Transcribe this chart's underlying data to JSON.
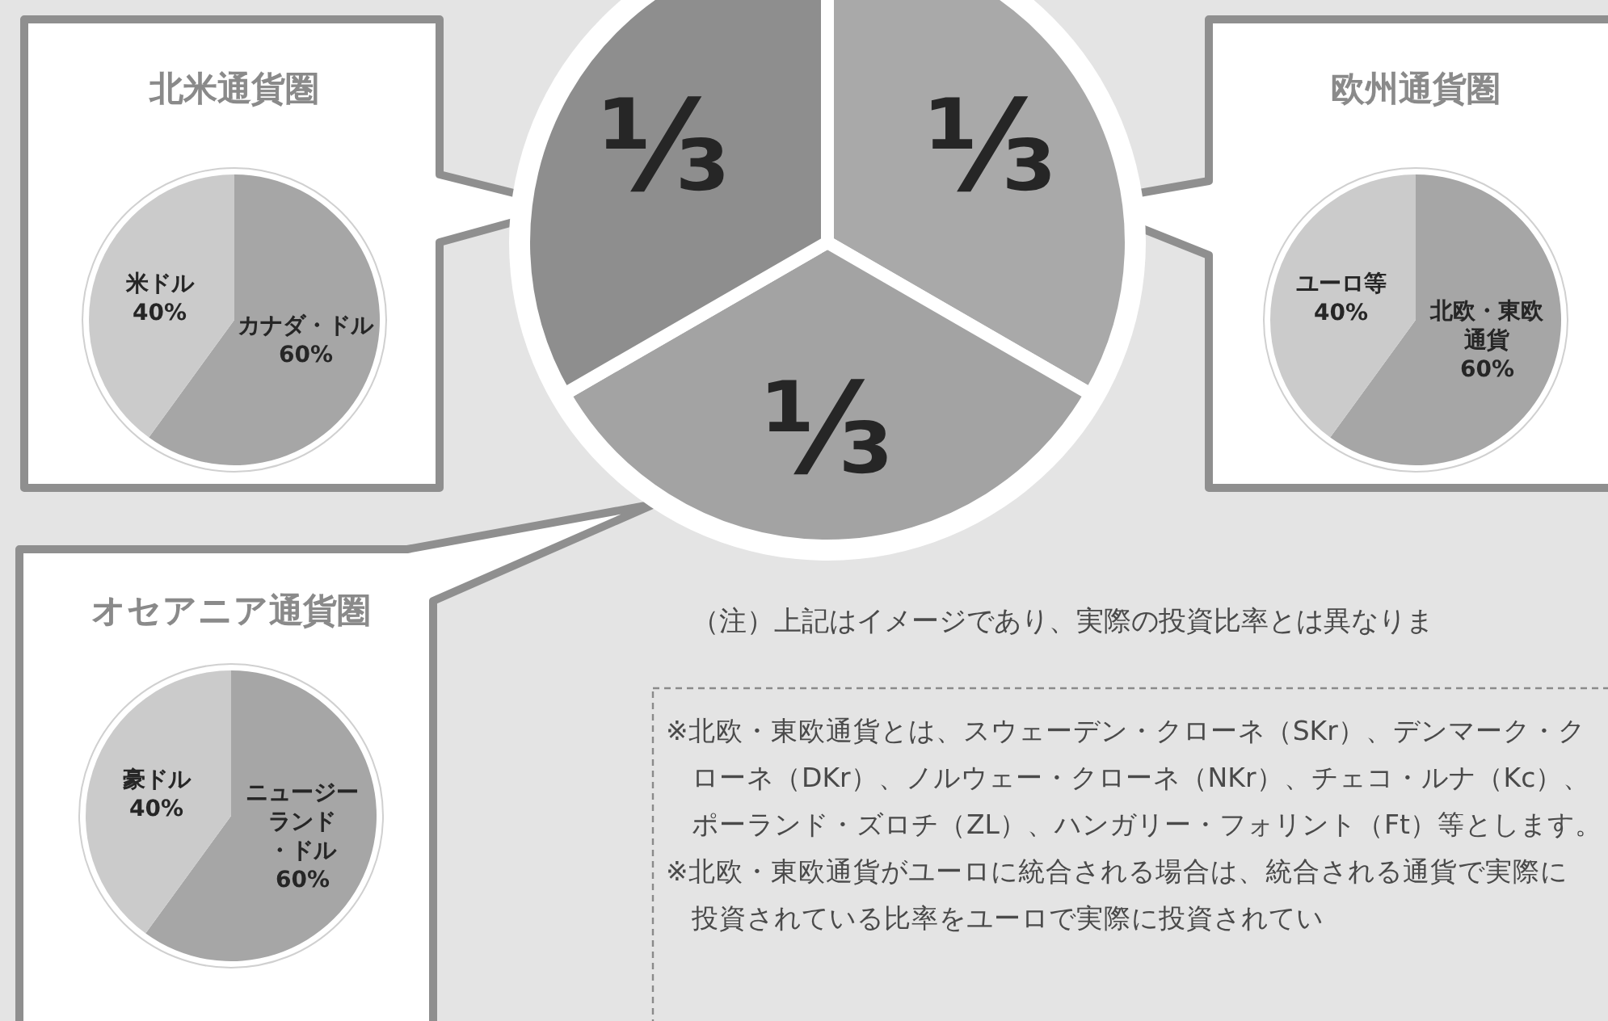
{
  "chart_data": [
    {
      "type": "pie",
      "categories": [
        null,
        null,
        null
      ],
      "values": [
        33.33,
        33.33,
        33.33
      ],
      "colors": [
        "#a9a9a9",
        "#a3a3a3",
        "#8e8e8e"
      ],
      "value_labels": [
        "⅓",
        "⅓",
        "⅓"
      ],
      "annotations": [
        "（注）上記はイメージであり、実際の投資比率とは異なりま",
        "※北欧・東欧通貨とは、スウェーデン・クローネ（SKr）、デンマーク・クローネ（DKr）、ノルウェー・クローネ（NKr）、チェコ・ルナ（Kc）、ポーランド・ズロチ（ZL）、ハンガリー・フォリント（Ft）等とします。",
        "※北欧・東欧通貨がユーロに統合される場合は、統合される通貨で実際に投資されている比率をユーロで実際に投資されてい"
      ]
    },
    {
      "type": "pie",
      "title": "北米通貨圏",
      "categories": [
        "カナダ・ドル",
        "米ドル"
      ],
      "values": [
        60,
        40
      ],
      "colors": [
        "#a6a6a6",
        "#cbcbcb"
      ],
      "value_labels": [
        "60%",
        "40%"
      ]
    },
    {
      "type": "pie",
      "title": "欧州通貨圏",
      "categories": [
        "北欧・東欧通貨",
        "ユーロ等"
      ],
      "values": [
        60,
        40
      ],
      "colors": [
        "#a6a6a6",
        "#cbcbcb"
      ],
      "value_labels": [
        "60%",
        "40%"
      ]
    },
    {
      "type": "pie",
      "title": "オセアニア通貨圏",
      "categories": [
        "ニュージーランド・ドル",
        "豪ドル"
      ],
      "values": [
        60,
        40
      ],
      "colors": [
        "#a6a6a6",
        "#cbcbcb"
      ],
      "value_labels": [
        "60%",
        "40%"
      ]
    }
  ]
}
